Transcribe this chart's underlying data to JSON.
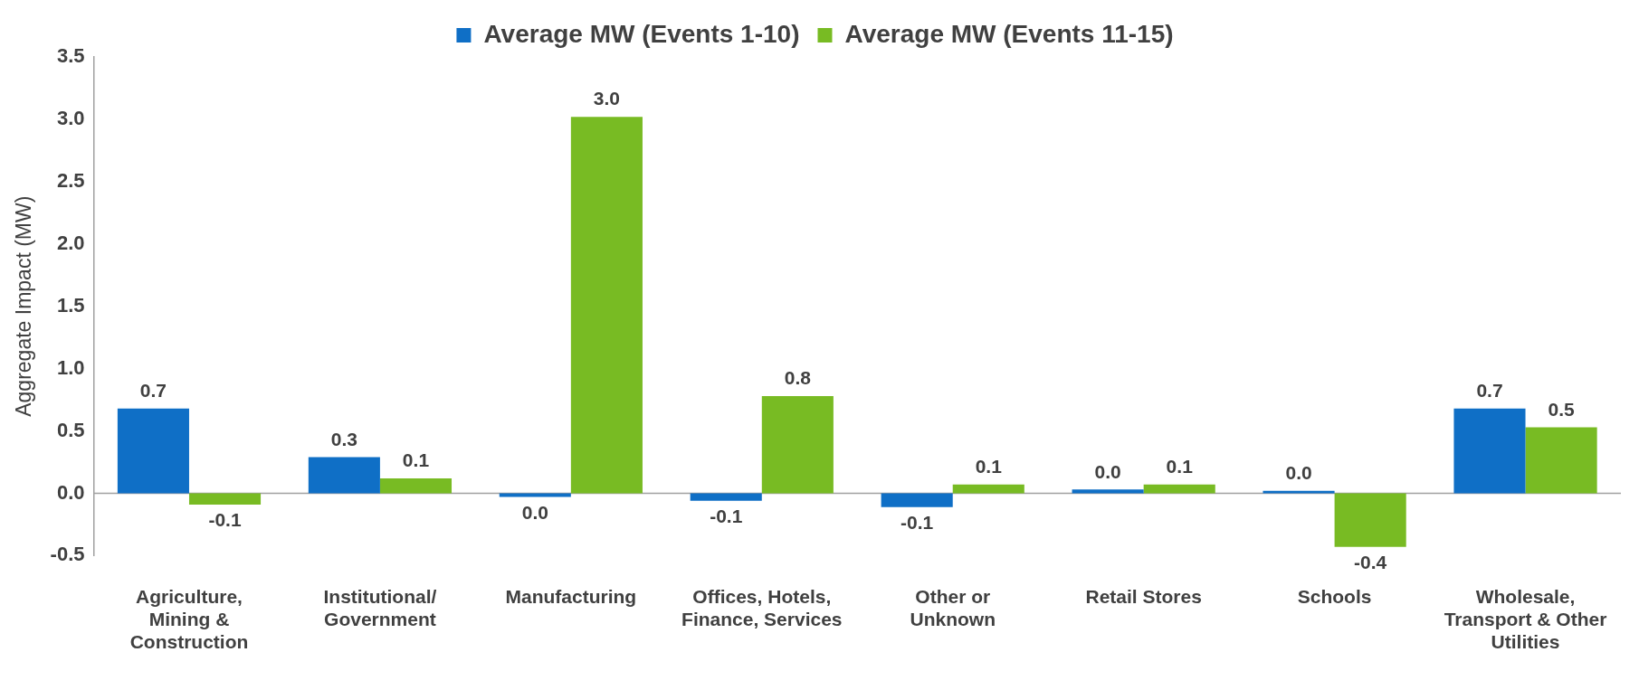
{
  "chart_data": {
    "type": "bar",
    "ylabel": "Aggregate Impact (MW)",
    "categories": [
      "Agriculture, Mining & Construction",
      "Institutional/ Government",
      "Manufacturing",
      "Offices, Hotels, Finance, Services",
      "Other or Unknown",
      "Retail Stores",
      "Schools",
      "Wholesale, Transport & Other Utilities"
    ],
    "series": [
      {
        "name": "Average MW (Events 1-10)",
        "color": "#0f6fc6",
        "values": [
          0.68,
          0.29,
          -0.03,
          -0.06,
          -0.11,
          0.03,
          0.02,
          0.68
        ],
        "value_labels": [
          "0.7",
          "0.3",
          "0.0",
          "-0.1",
          "-0.1",
          "0.0",
          "0.0",
          "0.7"
        ]
      },
      {
        "name": "Average MW (Events 11-15)",
        "color": "#78bb23",
        "values": [
          -0.09,
          0.12,
          3.02,
          0.78,
          0.07,
          0.07,
          -0.43,
          0.53
        ],
        "value_labels": [
          "-0.1",
          "0.1",
          "3.0",
          "0.8",
          "0.1",
          "0.1",
          "-0.4",
          "0.5"
        ]
      }
    ],
    "ylim": [
      -0.5,
      3.5
    ],
    "yticks": [
      "-0.5",
      "0.0",
      "0.5",
      "1.0",
      "1.5",
      "2.0",
      "2.5",
      "3.0",
      "3.5"
    ],
    "grid": false,
    "legend": "top"
  }
}
